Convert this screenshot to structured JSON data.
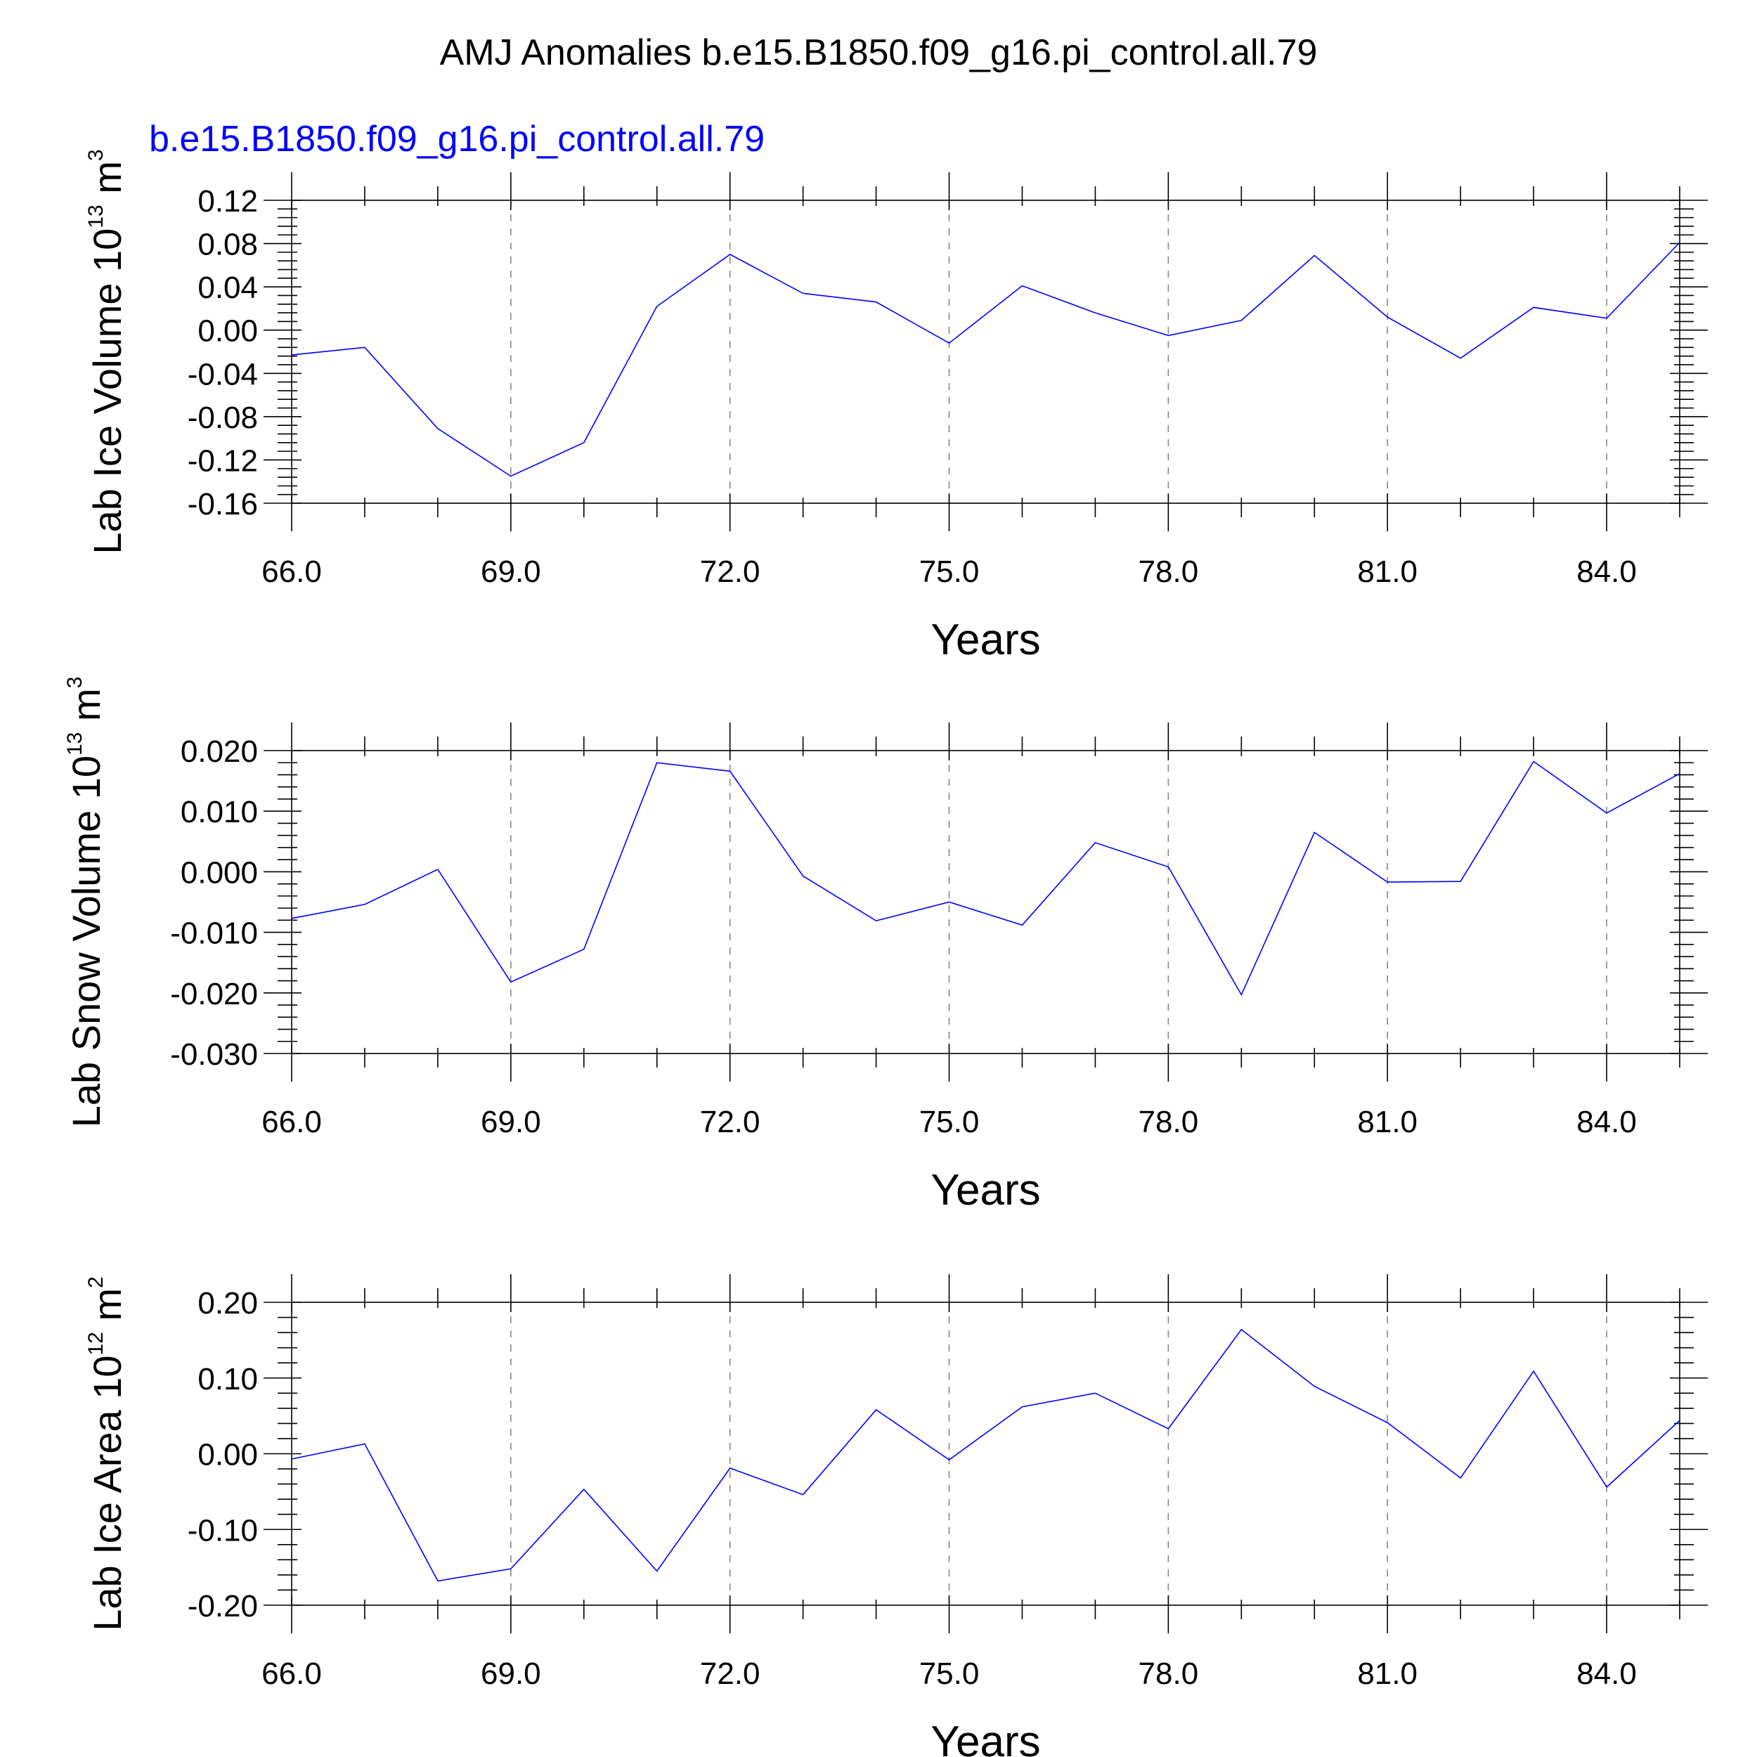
{
  "title": "AMJ Anomalies b.e15.B1850.f09_g16.pi_control.all.79",
  "colors": {
    "series": "#0000ff",
    "axes": "#000000",
    "grid": "#888888",
    "subtitle": "#0000ff"
  },
  "chart_data": [
    {
      "type": "line",
      "subtitle": "b.e15.B1850.f09_g16.pi_control.all.79",
      "ylabel": {
        "text": "Lab Ice Volume 10",
        "exp": "13",
        "unit": " m",
        "unit_exp": "3"
      },
      "xlabel": "Years",
      "xlim": [
        66,
        85
      ],
      "ylim": [
        -0.16,
        0.12
      ],
      "xticks": [
        "66.0",
        "69.0",
        "72.0",
        "75.0",
        "78.0",
        "81.0",
        "84.0"
      ],
      "xtick_values": [
        66,
        69,
        72,
        75,
        78,
        81,
        84
      ],
      "yticks": [
        "0.12",
        "0.08",
        "0.04",
        "0.00",
        "-0.04",
        "-0.08",
        "-0.12",
        "-0.16"
      ],
      "ytick_values": [
        0.12,
        0.08,
        0.04,
        0.0,
        -0.04,
        -0.08,
        -0.12,
        -0.16
      ],
      "grid": "vertical dashed at major x ticks",
      "x": [
        66,
        67,
        68,
        69,
        70,
        71,
        72,
        73,
        74,
        75,
        76,
        77,
        78,
        79,
        80,
        81,
        82,
        83,
        84,
        85
      ],
      "values": [
        -0.023,
        -0.016,
        -0.091,
        -0.135,
        -0.104,
        0.022,
        0.07,
        0.034,
        0.026,
        -0.012,
        0.041,
        0.016,
        -0.005,
        0.009,
        0.069,
        0.012,
        -0.026,
        0.021,
        0.011,
        0.081
      ]
    },
    {
      "type": "line",
      "ylabel": {
        "text": "Lab Snow Volume 10",
        "exp": "13",
        "unit": " m",
        "unit_exp": "3"
      },
      "xlabel": "Years",
      "xlim": [
        66,
        85
      ],
      "ylim": [
        -0.03,
        0.02
      ],
      "xticks": [
        "66.0",
        "69.0",
        "72.0",
        "75.0",
        "78.0",
        "81.0",
        "84.0"
      ],
      "xtick_values": [
        66,
        69,
        72,
        75,
        78,
        81,
        84
      ],
      "yticks": [
        "0.020",
        "0.010",
        "0.000",
        "-0.010",
        "-0.020",
        "-0.030"
      ],
      "ytick_values": [
        0.02,
        0.01,
        0.0,
        -0.01,
        -0.02,
        -0.03
      ],
      "grid": "vertical dashed at major x ticks",
      "x": [
        66,
        67,
        68,
        69,
        70,
        71,
        72,
        73,
        74,
        75,
        76,
        77,
        78,
        79,
        80,
        81,
        82,
        83,
        84,
        85
      ],
      "values": [
        -0.0077,
        -0.0054,
        0.0004,
        -0.0182,
        -0.0128,
        0.018,
        0.0166,
        -0.0007,
        -0.0081,
        -0.005,
        -0.0088,
        0.0048,
        0.0008,
        -0.0203,
        0.0065,
        -0.0017,
        -0.0016,
        0.0182,
        0.0097,
        0.0162
      ]
    },
    {
      "type": "line",
      "ylabel": {
        "text": "Lab Ice Area 10",
        "exp": "12",
        "unit": " m",
        "unit_exp": "2"
      },
      "xlabel": "Years",
      "xlim": [
        66,
        85
      ],
      "ylim": [
        -0.2,
        0.2
      ],
      "xticks": [
        "66.0",
        "69.0",
        "72.0",
        "75.0",
        "78.0",
        "81.0",
        "84.0"
      ],
      "xtick_values": [
        66,
        69,
        72,
        75,
        78,
        81,
        84
      ],
      "yticks": [
        "0.20",
        "0.10",
        "0.00",
        "-0.10",
        "-0.20"
      ],
      "ytick_values": [
        0.2,
        0.1,
        0.0,
        -0.1,
        -0.2
      ],
      "grid": "vertical dashed at major x ticks",
      "x": [
        66,
        67,
        68,
        69,
        70,
        71,
        72,
        73,
        74,
        75,
        76,
        77,
        78,
        79,
        80,
        81,
        82,
        83,
        84,
        85
      ],
      "values": [
        -0.007,
        0.013,
        -0.168,
        -0.152,
        -0.047,
        -0.155,
        -0.019,
        -0.054,
        0.058,
        -0.008,
        0.062,
        0.08,
        0.033,
        0.164,
        0.089,
        0.041,
        -0.032,
        0.109,
        -0.044,
        0.044
      ]
    }
  ]
}
